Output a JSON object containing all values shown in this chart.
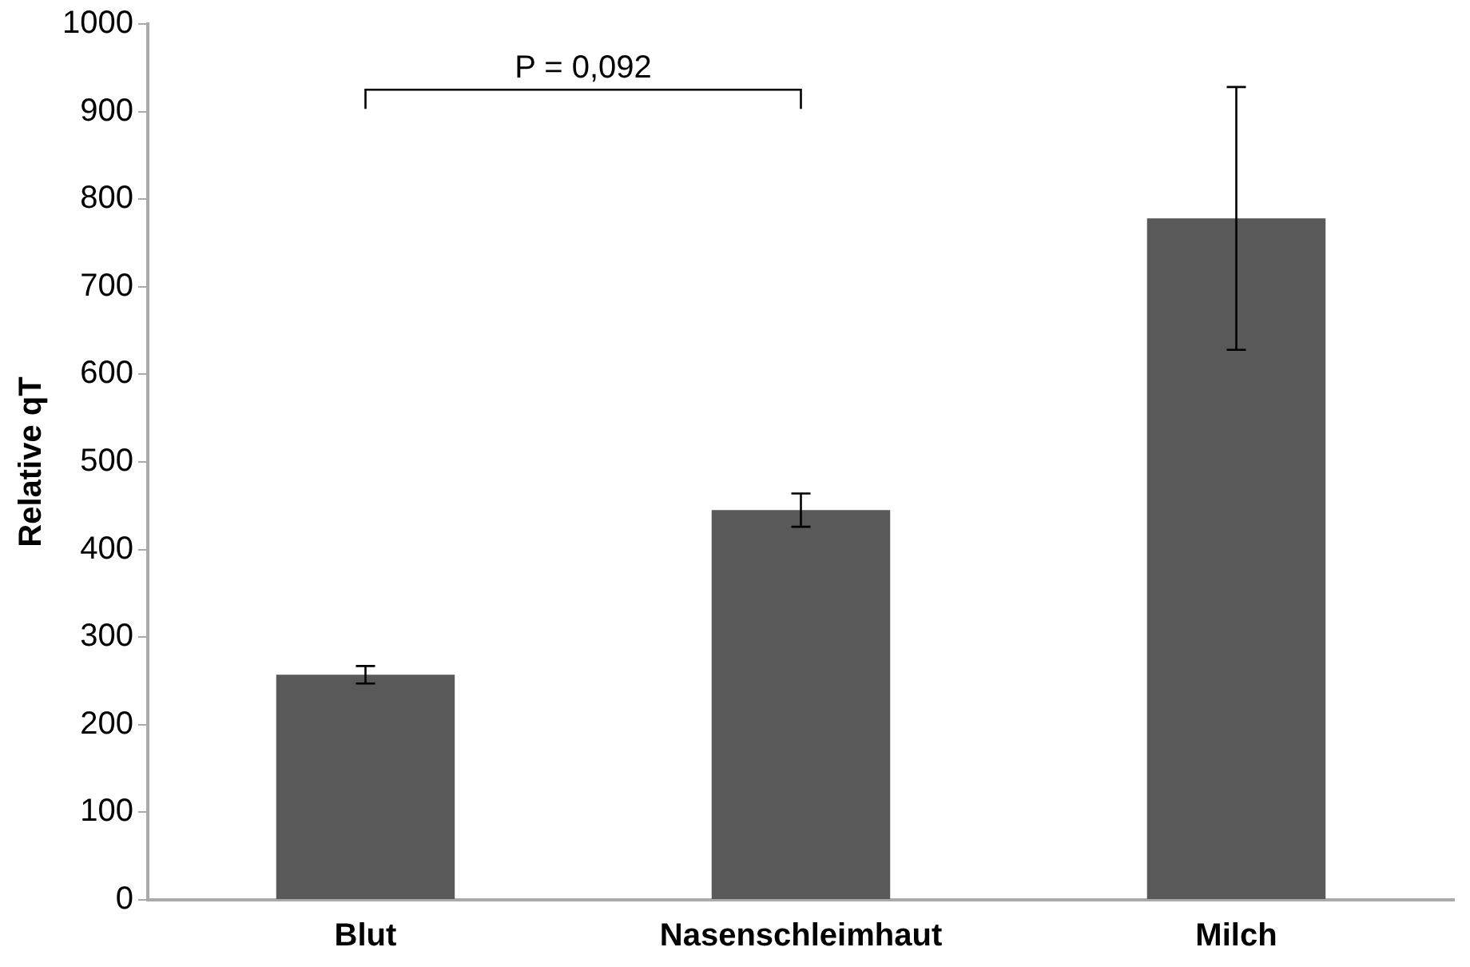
{
  "chart_data": {
    "type": "bar",
    "ylabel": "Relative qT",
    "categories": [
      "Blut",
      "Nasenschleimhaut",
      "Milch"
    ],
    "values": [
      257,
      445,
      778
    ],
    "errors": [
      10,
      19,
      150
    ],
    "color": "#595959",
    "ylim": [
      0,
      1000
    ],
    "yticks": [
      0,
      100,
      200,
      300,
      400,
      500,
      600,
      700,
      800,
      900,
      1000
    ],
    "grid": false,
    "legend": false,
    "annotations": [
      "P = 0,092"
    ]
  }
}
